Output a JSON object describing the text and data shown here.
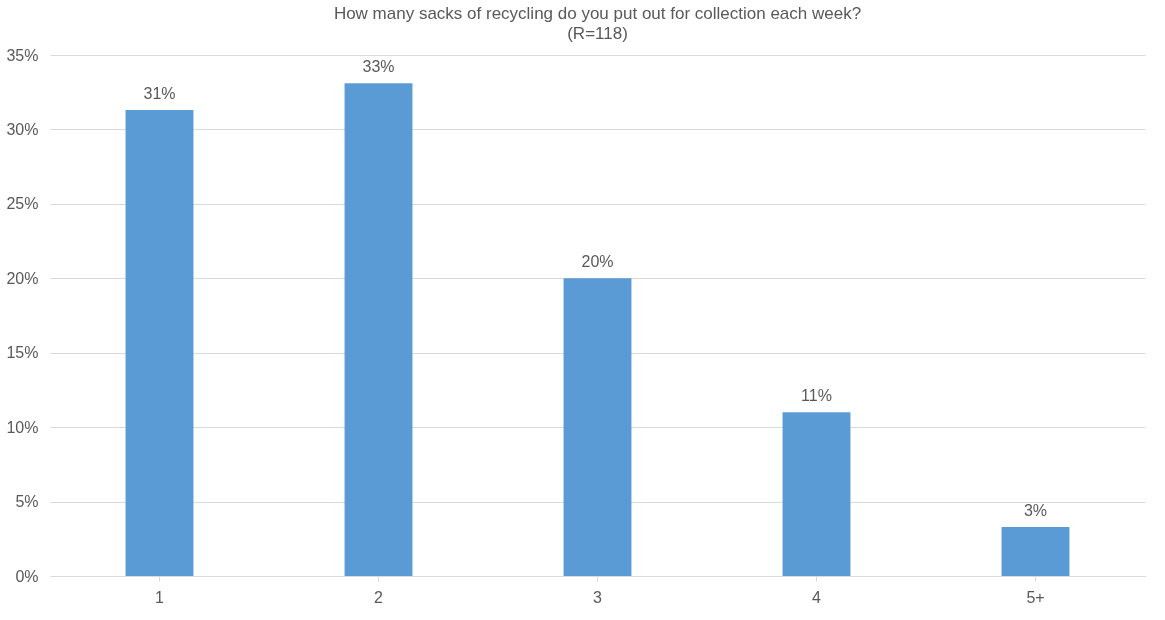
{
  "chart_data": {
    "type": "bar",
    "title": "How many sacks of recycling do you put out for collection each week?",
    "subtitle": "(R=118)",
    "categories": [
      "1",
      "2",
      "3",
      "4",
      "5+"
    ],
    "values": [
      31.3,
      33.1,
      20.0,
      11.0,
      3.3
    ],
    "value_labels": [
      "31%",
      "33%",
      "20%",
      "11%",
      "3%"
    ],
    "color": "#5b9bd5",
    "ylim": [
      0,
      35
    ],
    "yticks": [
      {
        "value": 0,
        "label": "0%"
      },
      {
        "value": 5,
        "label": "5%"
      },
      {
        "value": 10,
        "label": "10%"
      },
      {
        "value": 15,
        "label": "15%"
      },
      {
        "value": 20,
        "label": "20%"
      },
      {
        "value": 25,
        "label": "25%"
      },
      {
        "value": 30,
        "label": "30%"
      },
      {
        "value": 35,
        "label": "35%"
      }
    ],
    "grid": "y"
  }
}
